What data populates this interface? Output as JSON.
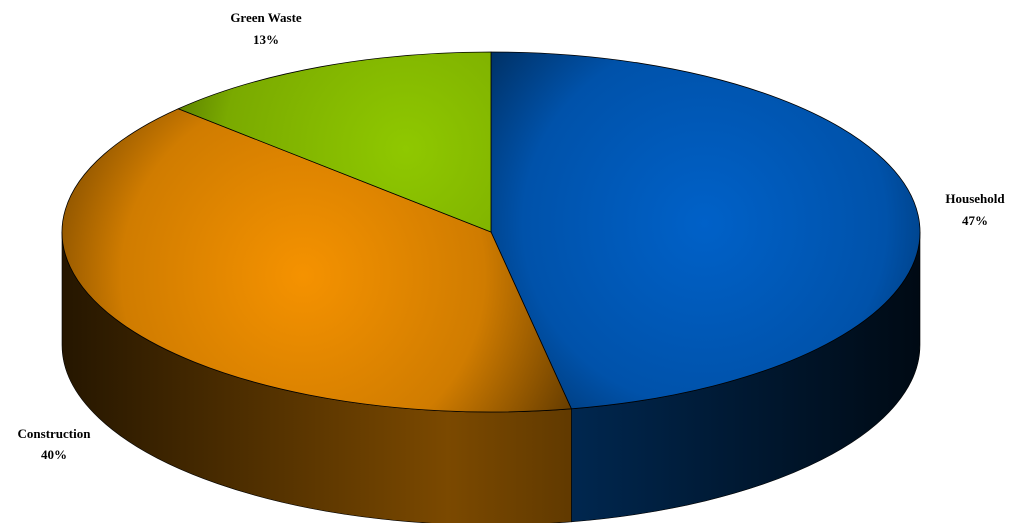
{
  "chart_data": {
    "type": "pie",
    "style": "3d",
    "legend": "none",
    "title": "",
    "slices": [
      {
        "label": "Household",
        "value": 47,
        "value_label": "47%",
        "color": "#0061c8"
      },
      {
        "label": "Construction",
        "value": 40,
        "value_label": "40%",
        "color": "#f59200"
      },
      {
        "label": "Green Waste",
        "value": 13,
        "value_label": "13%",
        "color": "#8fc800"
      }
    ]
  }
}
